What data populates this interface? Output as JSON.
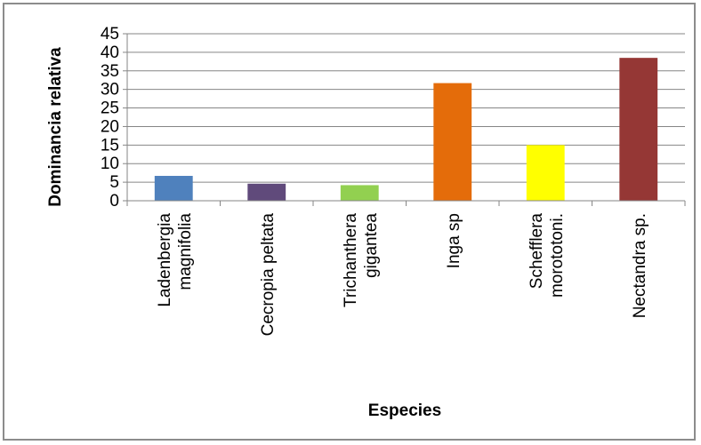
{
  "chart_data": {
    "type": "bar",
    "title": "",
    "xlabel": "Especies",
    "ylabel": "Dominancia relativa",
    "ylim": [
      0,
      45
    ],
    "yticks": [
      0,
      5,
      10,
      15,
      20,
      25,
      30,
      35,
      40,
      45
    ],
    "grid": true,
    "legend": "none",
    "categories": [
      [
        "Ladenbergia",
        "magnifolia"
      ],
      [
        "Cecropia peltata"
      ],
      [
        "Trichanthera",
        "gigantea"
      ],
      [
        "Inga sp"
      ],
      [
        "Schefflera",
        "morototoni."
      ],
      [
        "Nectandra sp."
      ]
    ],
    "values": [
      6.7,
      4.6,
      4.2,
      31.7,
      15.0,
      38.5
    ],
    "colors": [
      "#4f81bd",
      "#604a7b",
      "#92d050",
      "#e46c0a",
      "#ffff00",
      "#953735"
    ]
  }
}
